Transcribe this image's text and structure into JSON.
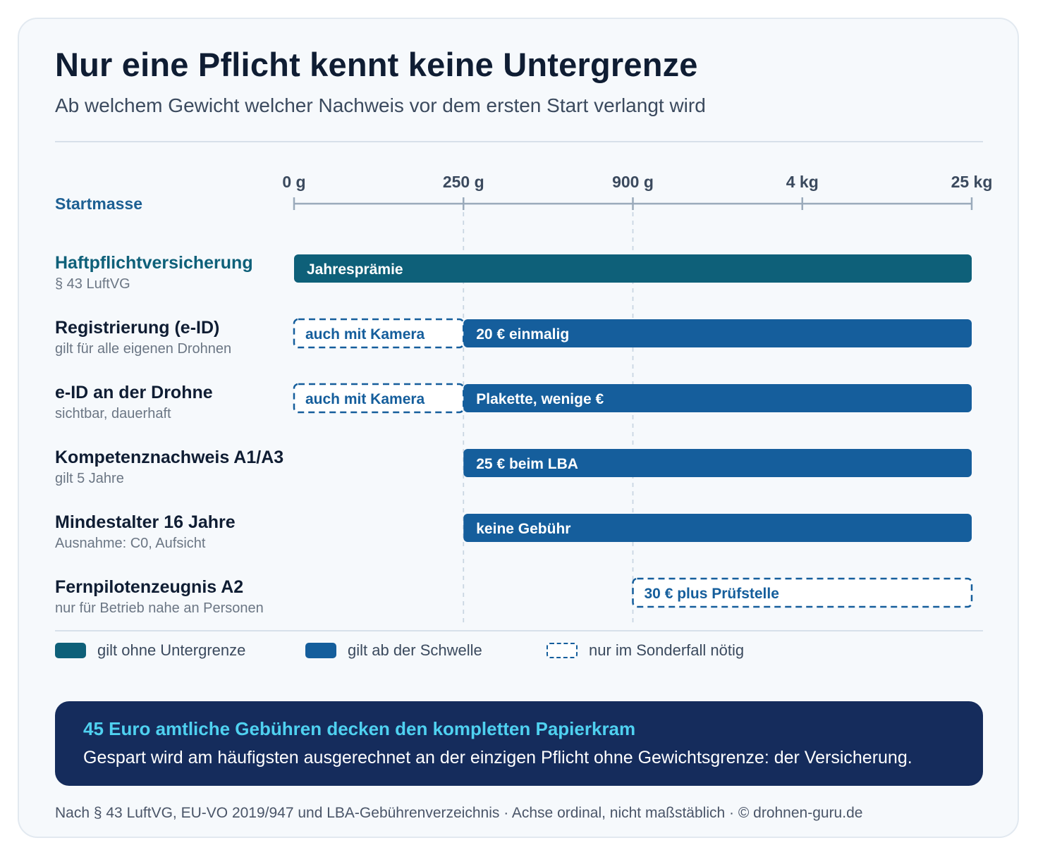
{
  "title": "Nur eine Pflicht kennt keine Untergrenze",
  "subtitle": "Ab welchem Gewicht welcher Nachweis vor dem ersten Start verlangt wird",
  "colors": {
    "teal": "#0e6079",
    "blue": "#155e9c",
    "dashed": "#3f8fbf",
    "navy": "#152c5c",
    "accent": "#4fd1f0",
    "axis": "#9aaabb"
  },
  "chart_data": {
    "type": "bar",
    "orientation": "horizontal",
    "axis_label": "Startmasse",
    "axis_ticks": [
      "0 g",
      "250 g",
      "900 g",
      "4 kg",
      "25 kg"
    ],
    "axis_note": "ordinal",
    "rows": [
      {
        "title": "Haftpflichtversicherung",
        "subtitle": "§ 43 LuftVG",
        "title_color": "teal",
        "bars": [
          {
            "start": "0 g",
            "end": "25 kg",
            "style": "teal",
            "label": "Jahresprämie"
          }
        ]
      },
      {
        "title": "Registrierung (e-ID)",
        "subtitle": "gilt für alle eigenen Drohnen",
        "title_color": "dark",
        "bars": [
          {
            "start": "0 g",
            "end": "250 g",
            "style": "dashed",
            "label": "auch mit Kamera"
          },
          {
            "start": "250 g",
            "end": "25 kg",
            "style": "blue",
            "label": "20 € einmalig"
          }
        ]
      },
      {
        "title": "e-ID an der Drohne",
        "subtitle": "sichtbar, dauerhaft",
        "title_color": "dark",
        "bars": [
          {
            "start": "0 g",
            "end": "250 g",
            "style": "dashed",
            "label": "auch mit Kamera"
          },
          {
            "start": "250 g",
            "end": "25 kg",
            "style": "blue",
            "label": "Plakette, wenige €"
          }
        ]
      },
      {
        "title": "Kompetenznachweis A1/A3",
        "subtitle": "gilt 5 Jahre",
        "title_color": "dark",
        "bars": [
          {
            "start": "250 g",
            "end": "25 kg",
            "style": "blue",
            "label": "25 € beim LBA"
          }
        ]
      },
      {
        "title": "Mindestalter 16 Jahre",
        "subtitle": "Ausnahme: C0, Aufsicht",
        "title_color": "dark",
        "bars": [
          {
            "start": "250 g",
            "end": "25 kg",
            "style": "blue",
            "label": "keine Gebühr"
          }
        ]
      },
      {
        "title": "Fernpilotenzeugnis A2",
        "subtitle": "nur für Betrieb nahe an Personen",
        "title_color": "dark",
        "bars": [
          {
            "start": "900 g",
            "end": "25 kg",
            "style": "dashed",
            "label": "30 € plus Prüfstelle"
          }
        ]
      }
    ],
    "legend": [
      {
        "style": "teal",
        "label": "gilt ohne Untergrenze"
      },
      {
        "style": "blue",
        "label": "gilt ab der Schwelle"
      },
      {
        "style": "dashed",
        "label": "nur im Sonderfall nötig"
      }
    ]
  },
  "callout": {
    "headline": "45 Euro amtliche Gebühren decken den kompletten Papierkram",
    "body": "Gespart wird am häufigsten ausgerechnet an der einzigen Pflicht ohne Gewichtsgrenze: der Versicherung."
  },
  "footer": "Nach § 43 LuftVG, EU-VO 2019/947 und LBA-Gebührenverzeichnis · Achse ordinal, nicht maßstäblich · © drohnen-guru.de"
}
